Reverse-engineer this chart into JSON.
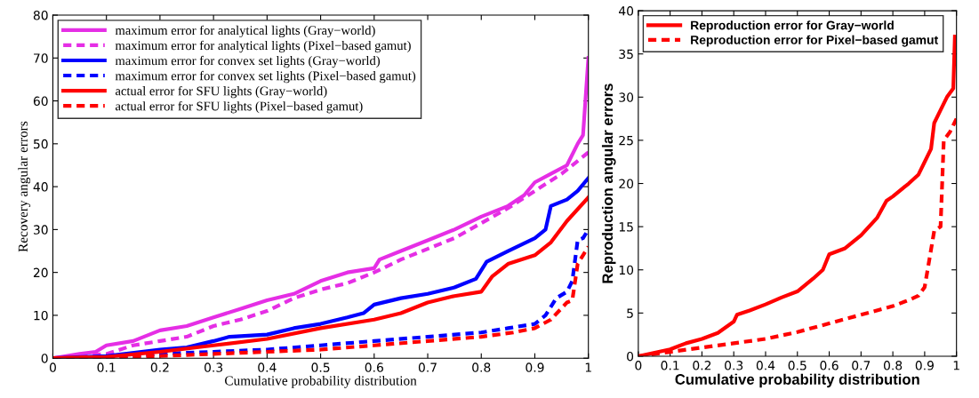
{
  "chart_data": [
    {
      "type": "line",
      "xlabel": "Cumulative probability distribution",
      "ylabel": "Recovery angular errors",
      "xlim": [
        0,
        1
      ],
      "ylim": [
        0,
        80
      ],
      "xticks": [
        0,
        0.1,
        0.2,
        0.3,
        0.4,
        0.5,
        0.6,
        0.7,
        0.8,
        0.9,
        1
      ],
      "yticks": [
        0,
        10,
        20,
        30,
        40,
        50,
        60,
        70,
        80
      ],
      "grid": false,
      "legend": "top left",
      "marker": "none",
      "series": [
        {
          "name": "maximum error for analytical lights (Gray−world)",
          "color": "#e52ee5",
          "line_style": "solid",
          "x": [
            0,
            0.05,
            0.08,
            0.1,
            0.15,
            0.2,
            0.25,
            0.3,
            0.35,
            0.4,
            0.45,
            0.5,
            0.55,
            0.6,
            0.61,
            0.65,
            0.7,
            0.75,
            0.8,
            0.85,
            0.88,
            0.9,
            0.93,
            0.96,
            0.98,
            0.99,
            1
          ],
          "values": [
            0,
            1,
            1.5,
            3,
            4,
            6.5,
            7.5,
            9.5,
            11.5,
            13.5,
            15,
            18,
            20,
            21,
            23,
            25,
            27.5,
            30,
            33,
            35.5,
            38,
            41,
            43,
            45,
            50,
            52,
            70
          ]
        },
        {
          "name": "maximum error for analytical lights (Pixel−based gamut)",
          "color": "#e52ee5",
          "line_style": "dashed",
          "x": [
            0,
            0.1,
            0.15,
            0.2,
            0.25,
            0.3,
            0.35,
            0.4,
            0.45,
            0.5,
            0.55,
            0.6,
            0.65,
            0.7,
            0.75,
            0.8,
            0.85,
            0.9,
            0.95,
            1
          ],
          "values": [
            0,
            1,
            3,
            4,
            5,
            7.5,
            9,
            11,
            14,
            16,
            17.5,
            20,
            23,
            25.5,
            28,
            31.5,
            35,
            39,
            43,
            48
          ]
        },
        {
          "name": "maximum error for convex set lights (Gray−world)",
          "color": "#0000ff",
          "line_style": "solid",
          "x": [
            0,
            0.1,
            0.2,
            0.25,
            0.3,
            0.33,
            0.4,
            0.45,
            0.5,
            0.55,
            0.58,
            0.6,
            0.65,
            0.7,
            0.75,
            0.79,
            0.81,
            0.85,
            0.9,
            0.92,
            0.93,
            0.96,
            0.98,
            1
          ],
          "values": [
            0,
            0.5,
            2,
            2.5,
            4,
            5,
            5.5,
            7,
            8,
            9.5,
            10.5,
            12.5,
            14,
            15,
            16.5,
            18.5,
            22.5,
            25,
            28,
            30,
            35.5,
            37,
            39,
            42
          ]
        },
        {
          "name": "maximum error for convex set lights (Pixel−based gamut)",
          "color": "#0000ff",
          "line_style": "dashed",
          "x": [
            0,
            0.1,
            0.2,
            0.3,
            0.4,
            0.5,
            0.6,
            0.7,
            0.8,
            0.85,
            0.9,
            0.92,
            0.94,
            0.96,
            0.97,
            0.98,
            0.99,
            1
          ],
          "values": [
            0,
            0,
            1,
            1.5,
            2,
            3,
            4,
            5,
            6,
            7,
            8,
            10,
            14,
            15.5,
            18,
            27.5,
            28,
            30
          ]
        },
        {
          "name": "actual error for SFU lights (Gray−world)",
          "color": "#ff0000",
          "line_style": "solid",
          "x": [
            0,
            0.1,
            0.2,
            0.3,
            0.4,
            0.5,
            0.6,
            0.65,
            0.7,
            0.75,
            0.8,
            0.82,
            0.85,
            0.9,
            0.93,
            0.96,
            1
          ],
          "values": [
            0,
            0.3,
            1.5,
            3,
            4.5,
            7,
            9,
            10.5,
            13,
            14.5,
            15.5,
            19,
            22,
            24,
            27,
            32,
            37.5
          ]
        },
        {
          "name": "actual error for SFU lights (Pixel−based gamut)",
          "color": "#ff0000",
          "line_style": "dashed",
          "x": [
            0,
            0.2,
            0.3,
            0.4,
            0.5,
            0.6,
            0.7,
            0.8,
            0.86,
            0.9,
            0.93,
            0.96,
            0.97,
            0.98,
            0.99,
            1
          ],
          "values": [
            0,
            0.5,
            1,
            1.5,
            2,
            3,
            4,
            5,
            6,
            7,
            9,
            13,
            13.5,
            22,
            24,
            26
          ]
        }
      ]
    },
    {
      "type": "line",
      "xlabel": "Cumulative probability distribution",
      "ylabel": "Reproduction angular errors",
      "xlim": [
        0,
        1
      ],
      "ylim": [
        0,
        40
      ],
      "xticks": [
        0,
        0.1,
        0.2,
        0.3,
        0.4,
        0.5,
        0.6,
        0.7,
        0.8,
        0.9,
        1
      ],
      "yticks": [
        0,
        5,
        10,
        15,
        20,
        25,
        30,
        35,
        40
      ],
      "grid": false,
      "legend": "top left",
      "marker": "none",
      "series": [
        {
          "name": "Reproduction error for Gray−world",
          "color": "#ff0000",
          "line_style": "solid",
          "x": [
            0,
            0.1,
            0.15,
            0.2,
            0.25,
            0.3,
            0.31,
            0.35,
            0.4,
            0.45,
            0.5,
            0.55,
            0.58,
            0.6,
            0.65,
            0.7,
            0.75,
            0.78,
            0.8,
            0.85,
            0.88,
            0.9,
            0.92,
            0.93,
            0.95,
            0.97,
            0.99,
            0.995
          ],
          "values": [
            0,
            0.8,
            1.5,
            2,
            2.7,
            4,
            4.8,
            5.3,
            6,
            6.8,
            7.5,
            9,
            10,
            11.8,
            12.5,
            14,
            16,
            18,
            18.5,
            20,
            21,
            22.5,
            24,
            27,
            28.5,
            30,
            31,
            37
          ]
        },
        {
          "name": "Reproduction error for Pixel−based gamut",
          "color": "#ff0000",
          "line_style": "dashed",
          "x": [
            0,
            0.1,
            0.2,
            0.3,
            0.4,
            0.5,
            0.6,
            0.7,
            0.8,
            0.85,
            0.88,
            0.9,
            0.93,
            0.95,
            0.96,
            0.98,
            1
          ],
          "values": [
            0,
            0.5,
            1,
            1.5,
            2,
            2.8,
            3.8,
            4.8,
            5.8,
            6.5,
            7,
            8,
            14.5,
            15,
            25,
            26,
            27.5
          ]
        }
      ]
    }
  ]
}
